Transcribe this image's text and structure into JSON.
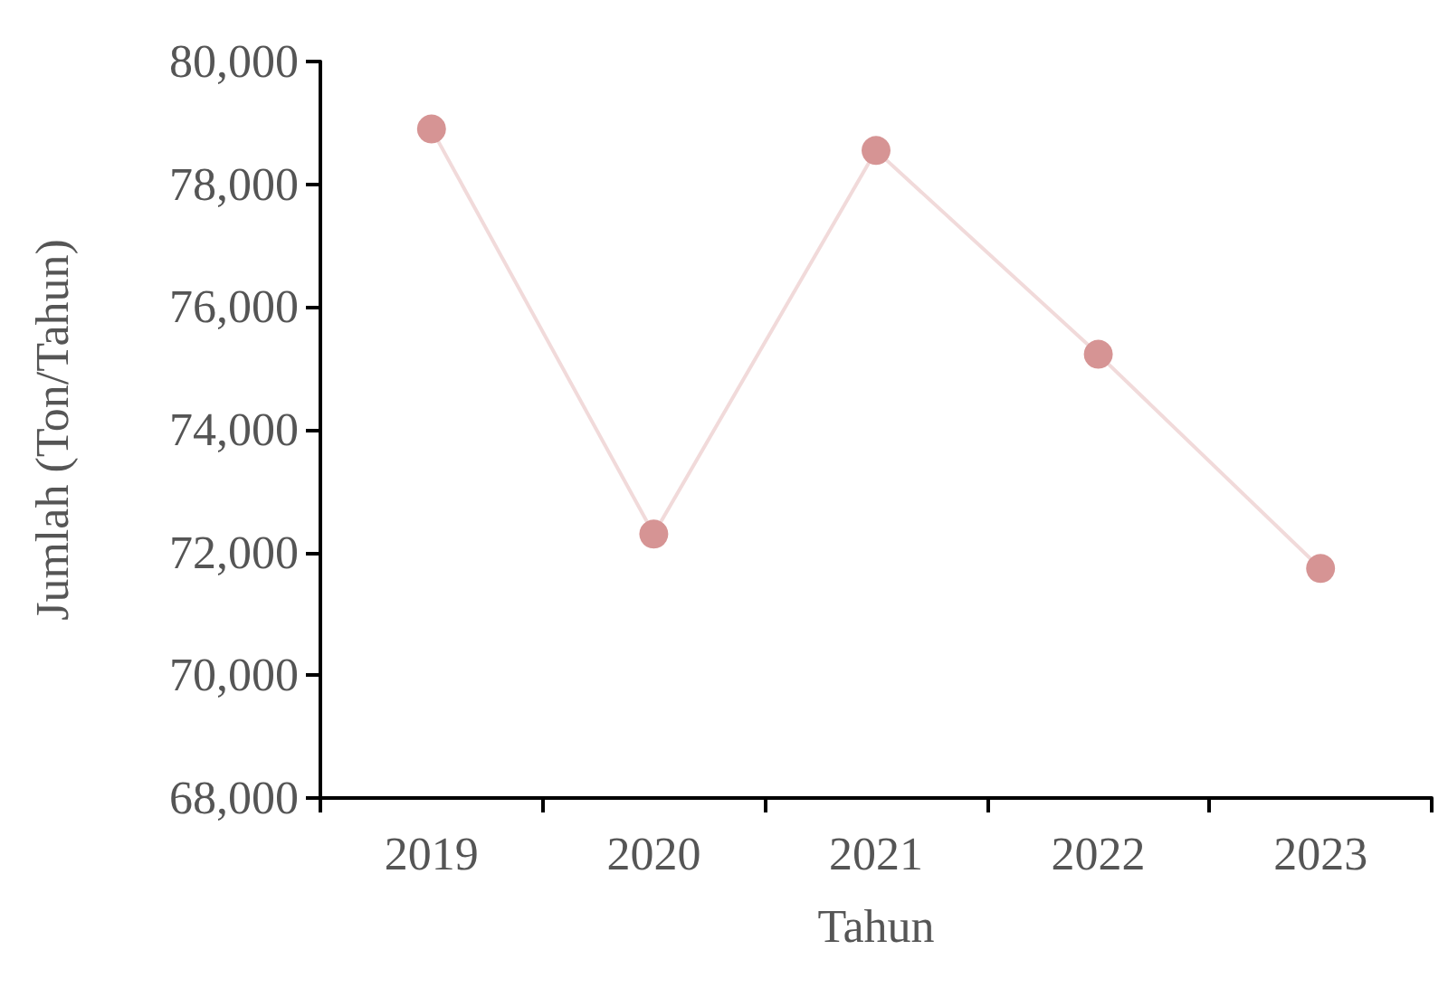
{
  "chart_data": {
    "type": "line",
    "xlabel": "Tahun",
    "ylabel": "Jumlah (Ton/Tahun)",
    "categories": [
      "2019",
      "2020",
      "2021",
      "2022",
      "2023"
    ],
    "series": [
      {
        "color": "#d69494",
        "values": [
          78900,
          72300,
          78550,
          75230,
          71740
        ]
      }
    ],
    "ylim": [
      68000,
      80000
    ],
    "yticks": [
      {
        "value": 68000,
        "label": "68,000"
      },
      {
        "value": 70000,
        "label": "70,000"
      },
      {
        "value": 72000,
        "label": "72,000"
      },
      {
        "value": 74000,
        "label": "74,000"
      },
      {
        "value": 76000,
        "label": "76,000"
      },
      {
        "value": 78000,
        "label": "78,000"
      },
      {
        "value": 80000,
        "label": "80,000"
      }
    ],
    "grid": false,
    "marker": "circle",
    "line_style": "solid"
  }
}
